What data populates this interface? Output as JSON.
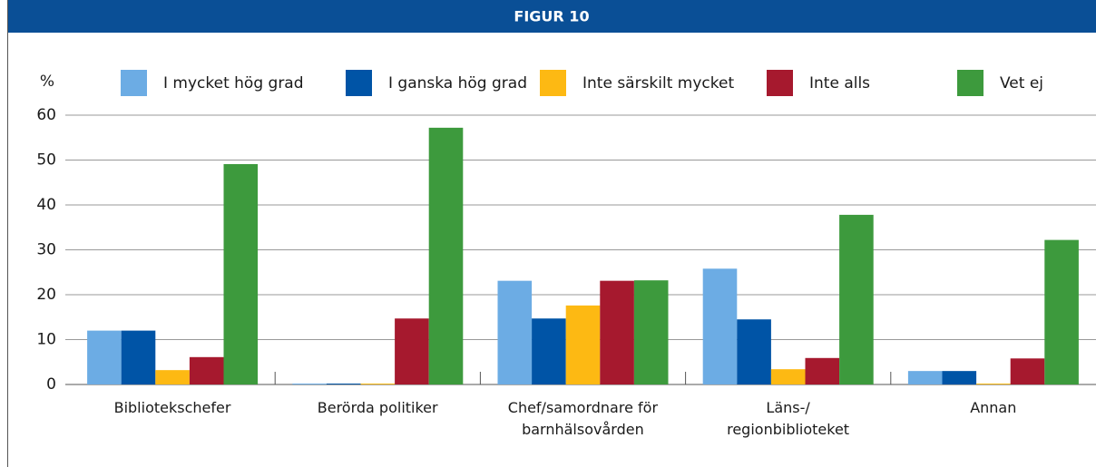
{
  "chart_data": {
    "type": "bar",
    "title": "FIGUR 10",
    "ylabel": "%",
    "categories": [
      "Bibliotekschefer",
      "Berörda politiker",
      "Chef/samordnare för\nbarnhälsovården",
      "Läns-/\nregionbiblioteket",
      "Annan"
    ],
    "series": [
      {
        "name": "I mycket hög grad",
        "color": "#6cace4",
        "values": [
          12,
          0.2,
          23.1,
          25.8,
          3
        ]
      },
      {
        "name": "I ganska hög grad",
        "color": "#0054a6",
        "values": [
          12,
          0.2,
          14.7,
          14.5,
          3
        ]
      },
      {
        "name": "Inte särskilt mycket",
        "color": "#fdb913",
        "values": [
          3.2,
          0.2,
          17.6,
          3.4,
          0.2
        ]
      },
      {
        "name": "Inte alls",
        "color": "#a6192e",
        "values": [
          6.1,
          14.7,
          23.1,
          5.9,
          5.8
        ]
      },
      {
        "name": "Vet ej",
        "color": "#3d9a3d",
        "values": [
          49.1,
          57.2,
          23.2,
          37.8,
          32.2
        ]
      }
    ],
    "ylim": [
      0,
      60
    ],
    "yticks": [
      0,
      10,
      20,
      30,
      40,
      50,
      60
    ],
    "grid": true,
    "legend": "top"
  }
}
